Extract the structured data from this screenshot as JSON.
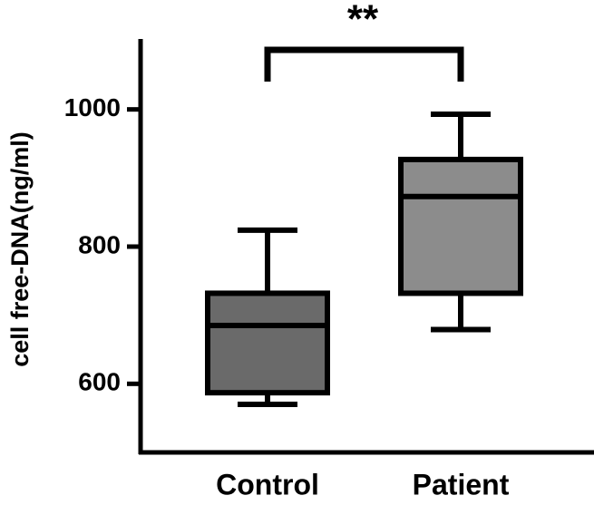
{
  "chart_data": {
    "type": "box",
    "annotation": "**",
    "y_label": "cell free-DNA(ng/ml)",
    "categories": [
      "Control",
      "Patient"
    ],
    "min": [
      570,
      679
    ],
    "q1": [
      587,
      732
    ],
    "median": [
      685,
      873
    ],
    "q3": [
      732,
      927
    ],
    "max": [
      824,
      993
    ],
    "colors": [
      "#6a6a6a",
      "#8c8c8c"
    ],
    "ylim": [
      500,
      1100
    ],
    "yticks": [
      600,
      800,
      1000
    ]
  }
}
